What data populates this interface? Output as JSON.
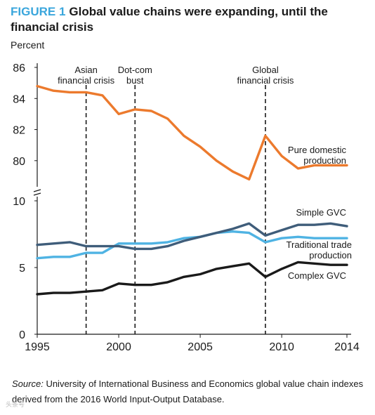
{
  "figure": {
    "label": "FIGURE 1",
    "title": "Global value chains were expanding, until the financial crisis",
    "unit_label": "Percent"
  },
  "source": {
    "label": "Source:",
    "text": "University of International Business and Economics global value chain indexes derived from the 2016 World Input-Output Database."
  },
  "watermark": "头条号",
  "colors": {
    "pure_domestic": "#ec7a2d",
    "simple_gvc": "#3f5d7a",
    "traditional_trade": "#4fb3e3",
    "complex_gvc": "#1a1a1a",
    "axis": "#1a1a1a"
  },
  "chart_data": {
    "type": "line",
    "x_ticks": [
      1995,
      2000,
      2005,
      2010,
      2014
    ],
    "xlim": [
      1995,
      2014
    ],
    "upper_panel": {
      "ylim": [
        78.5,
        86
      ],
      "y_ticks": [
        "80",
        "82",
        "84",
        "86"
      ],
      "series": [
        {
          "key": "pure_domestic",
          "name": "Pure domestic production",
          "name_lines": [
            "Pure domestic",
            "production"
          ],
          "x": [
            1995,
            1996,
            1997,
            1998,
            1999,
            2000,
            2001,
            2002,
            2003,
            2004,
            2005,
            2006,
            2007,
            2008,
            2009,
            2010,
            2011,
            2012,
            2013,
            2014
          ],
          "y": [
            84.8,
            84.5,
            84.4,
            84.4,
            84.2,
            83.0,
            83.3,
            83.2,
            82.7,
            81.6,
            80.9,
            80.0,
            79.3,
            78.8,
            81.6,
            80.3,
            79.5,
            79.7,
            79.7,
            79.7
          ]
        }
      ]
    },
    "lower_panel": {
      "ylim": [
        0,
        10
      ],
      "y_ticks": [
        "0",
        "5",
        "10"
      ],
      "series": [
        {
          "key": "simple_gvc",
          "name": "Simple GVC",
          "name_lines": [
            "Simple GVC"
          ],
          "x": [
            1995,
            1996,
            1997,
            1998,
            1999,
            2000,
            2001,
            2002,
            2003,
            2004,
            2005,
            2006,
            2007,
            2008,
            2009,
            2010,
            2011,
            2012,
            2013,
            2014
          ],
          "y": [
            6.7,
            6.8,
            6.9,
            6.6,
            6.6,
            6.6,
            6.4,
            6.4,
            6.6,
            7.0,
            7.3,
            7.6,
            7.9,
            8.3,
            7.4,
            7.8,
            8.2,
            8.2,
            8.3,
            8.1
          ]
        },
        {
          "key": "traditional_trade",
          "name": "Traditional trade production",
          "name_lines": [
            "Traditional trade",
            "production"
          ],
          "x": [
            1995,
            1996,
            1997,
            1998,
            1999,
            2000,
            2001,
            2002,
            2003,
            2004,
            2005,
            2006,
            2007,
            2008,
            2009,
            2010,
            2011,
            2012,
            2013,
            2014
          ],
          "y": [
            5.7,
            5.8,
            5.8,
            6.1,
            6.1,
            6.8,
            6.8,
            6.8,
            6.9,
            7.2,
            7.3,
            7.6,
            7.7,
            7.6,
            6.9,
            7.2,
            7.3,
            7.2,
            7.2,
            7.2
          ]
        },
        {
          "key": "complex_gvc",
          "name": "Complex GVC",
          "name_lines": [
            "Complex GVC"
          ],
          "x": [
            1995,
            1996,
            1997,
            1998,
            1999,
            2000,
            2001,
            2002,
            2003,
            2004,
            2005,
            2006,
            2007,
            2008,
            2009,
            2010,
            2011,
            2012,
            2013,
            2014
          ],
          "y": [
            3.0,
            3.1,
            3.1,
            3.2,
            3.3,
            3.8,
            3.7,
            3.7,
            3.9,
            4.3,
            4.5,
            4.9,
            5.1,
            5.3,
            4.3,
            4.9,
            5.4,
            5.3,
            5.2,
            5.2
          ]
        }
      ]
    },
    "annotations": [
      {
        "x": 1998,
        "lines": [
          "Asian",
          "financial crisis"
        ]
      },
      {
        "x": 2001,
        "lines": [
          "Dot-com",
          "bust"
        ]
      },
      {
        "x": 2009,
        "lines": [
          "Global",
          "financial crisis"
        ]
      }
    ]
  }
}
